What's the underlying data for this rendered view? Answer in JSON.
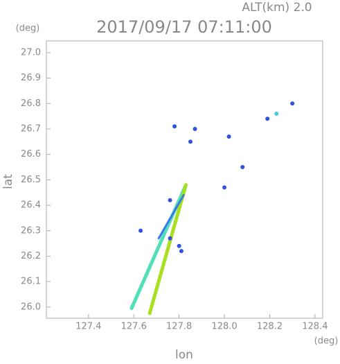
{
  "chart_data": {
    "type": "scatter",
    "title": "2017/09/17 07:11:00",
    "subtitle": "ALT(km) 2.0",
    "x_label": "lon",
    "y_label": "lat",
    "x_unit": "(deg)",
    "y_unit": "(deg)",
    "xlim": [
      127.214,
      128.434
    ],
    "ylim": [
      25.956,
      27.046
    ],
    "xticks": [
      127.4,
      127.6,
      127.8,
      {
        "value": 128,
        "label": "128.0"
      },
      128.2,
      128.4
    ],
    "yticks": [
      {
        "value": 26,
        "label": "26.0"
      },
      26.1,
      26.2,
      26.3,
      26.4,
      26.5,
      26.6,
      26.7,
      26.8,
      26.9,
      {
        "value": 27,
        "label": "27.0"
      }
    ],
    "streaks": [
      {
        "color": "#50e0b8",
        "x": [
          127.83,
          127.59
        ],
        "y": [
          26.48,
          25.995
        ]
      },
      {
        "color": "#a8e020",
        "x": [
          127.83,
          127.67
        ],
        "y": [
          26.48,
          25.975
        ]
      },
      {
        "color": "#3a7ae8",
        "x": [
          127.82,
          127.71
        ],
        "y": [
          26.44,
          26.27
        ]
      }
    ],
    "series": [
      {
        "color": "#3050e0",
        "x": [
          127.78,
          127.87,
          127.85,
          128.02,
          128.19,
          128.3,
          128.08,
          128.0,
          127.63,
          127.76,
          127.8,
          127.81,
          127.76
        ],
        "y": [
          26.71,
          26.7,
          26.65,
          26.67,
          26.74,
          26.8,
          26.55,
          26.47,
          26.3,
          26.27,
          26.24,
          26.22,
          26.42
        ]
      },
      {
        "color": "#40d0e0",
        "x": [
          128.23
        ],
        "y": [
          26.76
        ]
      }
    ]
  }
}
